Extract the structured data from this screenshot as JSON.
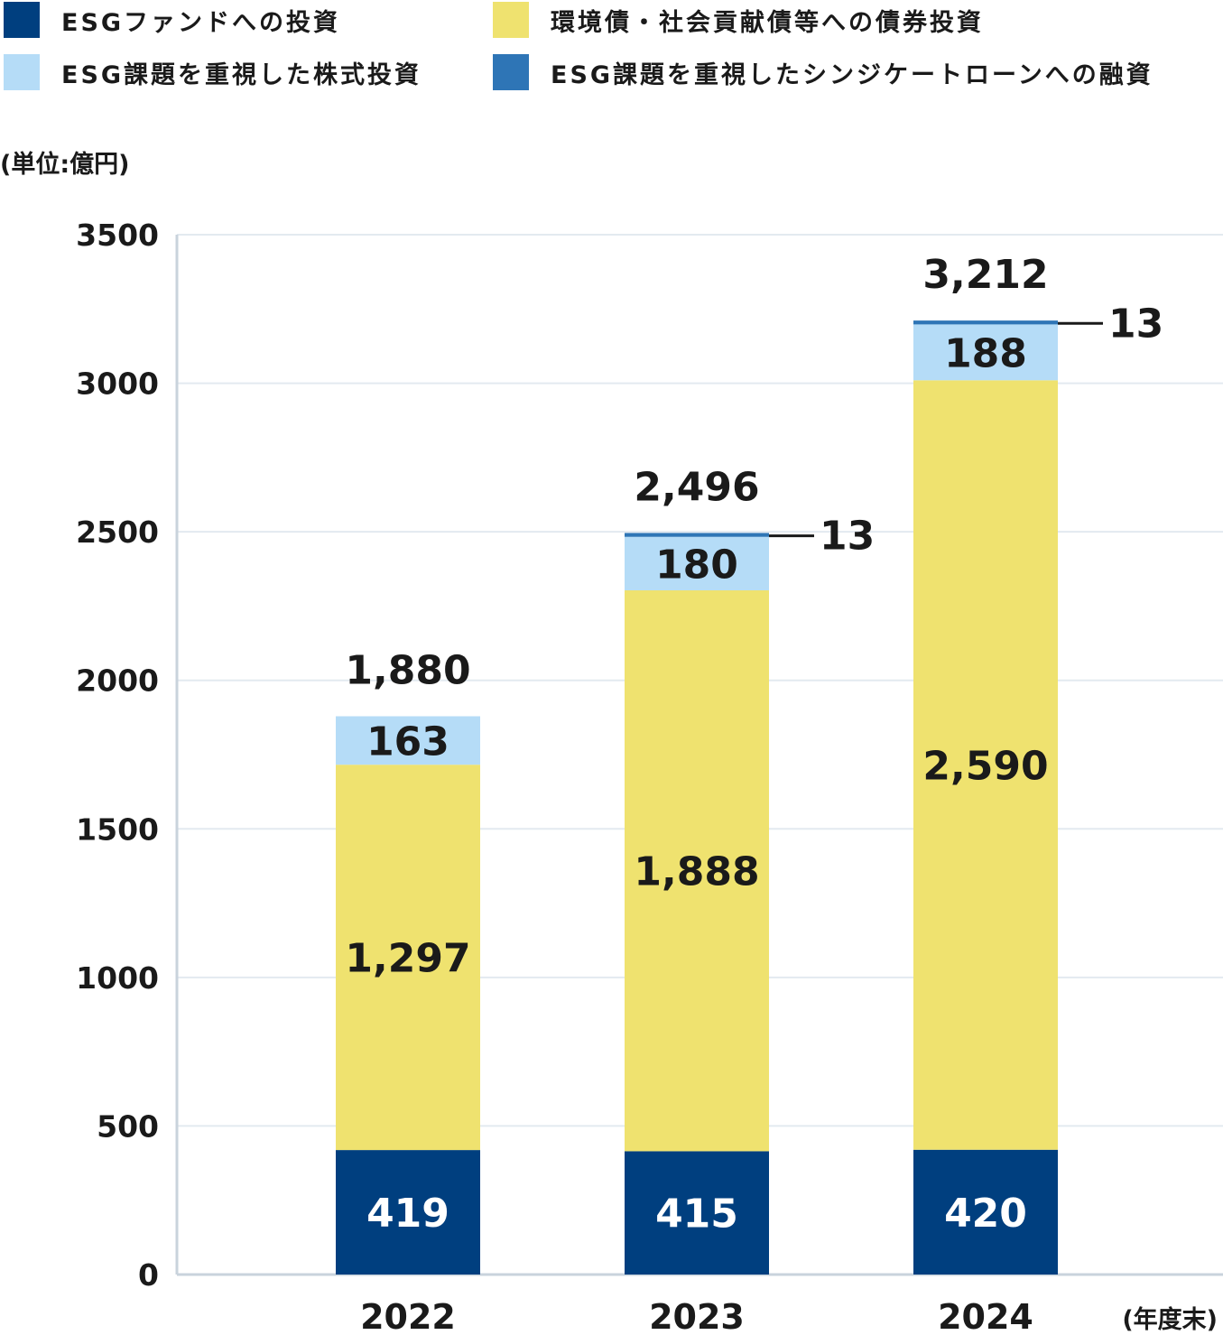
{
  "legend": [
    {
      "label": "ESGファンドへの投資",
      "color": "#003f7f"
    },
    {
      "label": "環境債・社会貢献債等への債券投資",
      "color": "#efe26f"
    },
    {
      "label": "ESG課題を重視した株式投資",
      "color": "#b5dcf7"
    },
    {
      "label": "ESG課題を重視したシンジケートローンへの融資",
      "color": "#2e75b6"
    }
  ],
  "unit_label": "(単位:億円)",
  "year_end_label": "(年度末)",
  "chart_data": {
    "type": "bar",
    "stacked": true,
    "categories": [
      "2022",
      "2023",
      "2024"
    ],
    "series": [
      {
        "name": "ESGファンドへの投資",
        "values": [
          419,
          415,
          420
        ],
        "labels": [
          "419",
          "415",
          "420"
        ],
        "color": "#003f7f",
        "label_color": "#ffffff"
      },
      {
        "name": "環境債・社会貢献債等への債券投資",
        "values": [
          1297,
          1888,
          2590
        ],
        "labels": [
          "1,297",
          "1,888",
          "2,590"
        ],
        "color": "#efe26f",
        "label_color": "#1a1a1a"
      },
      {
        "name": "ESG課題を重視した株式投資",
        "values": [
          163,
          180,
          188
        ],
        "labels": [
          "163",
          "180",
          "188"
        ],
        "color": "#b5dcf7",
        "label_color": "#1a1a1a"
      },
      {
        "name": "ESG課題を重視したシンジケートローンへの融資",
        "values": [
          0,
          13,
          13
        ],
        "labels": [
          "",
          "13",
          "13"
        ],
        "color": "#2e75b6",
        "label_color": "#1a1a1a",
        "label_outside": true
      }
    ],
    "totals": [
      "1,880",
      "2,496",
      "3,212"
    ],
    "ylim": [
      0,
      3500
    ],
    "yticks": [
      "0",
      "500",
      "1000",
      "1500",
      "2000",
      "2500",
      "3000",
      "3500"
    ],
    "grid": true,
    "legend_position": "top"
  }
}
